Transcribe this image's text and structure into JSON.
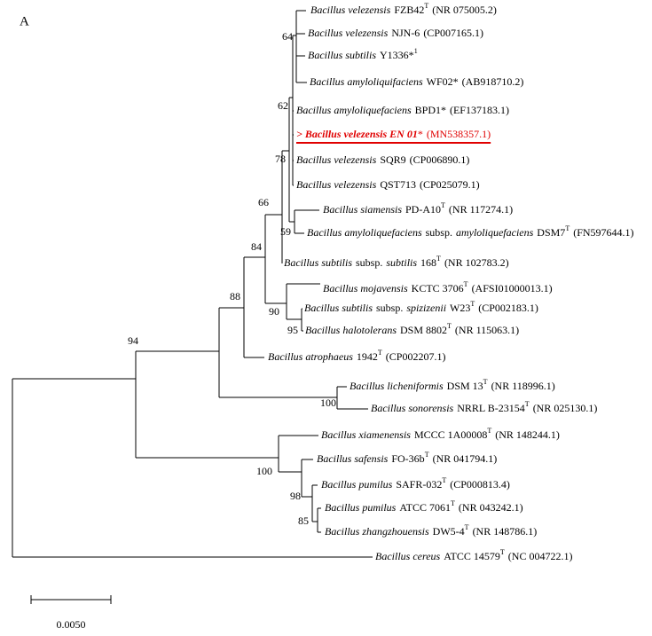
{
  "panel_label": "A",
  "leaves": [
    {
      "parts": [
        {
          "text": "Bacillus velezensis",
          "style": "italic"
        },
        {
          "text": "FZB42",
          "style": "normal"
        },
        {
          "text": "T",
          "style": "sup"
        },
        {
          "text": "(NR 075005.2)",
          "style": "normal"
        }
      ]
    },
    {
      "parts": [
        {
          "text": "Bacillus velezensis",
          "style": "italic"
        },
        {
          "text": "NJN-6",
          "style": "normal"
        },
        {
          "text": "(CP007165.1)",
          "style": "normal"
        }
      ]
    },
    {
      "parts": [
        {
          "text": "Bacillus subtilis",
          "style": "italic"
        },
        {
          "text": "Y1336*",
          "style": "normal"
        },
        {
          "text": "1",
          "style": "sup"
        }
      ]
    },
    {
      "parts": [
        {
          "text": "Bacillus amyloliquifaciens",
          "style": "italic"
        },
        {
          "text": "WF02*",
          "style": "normal"
        },
        {
          "text": "(AB918710.2)",
          "style": "normal"
        }
      ]
    },
    {
      "parts": [
        {
          "text": "Bacillus amyloliquefaciens",
          "style": "italic"
        },
        {
          "text": "BPD1*",
          "style": "normal"
        },
        {
          "text": "(EF137183.1)",
          "style": "normal"
        }
      ]
    },
    {
      "highlight": true,
      "color": "#e00000",
      "parts": [
        {
          "text": "> Bacillus velezensis EN 01",
          "style": "bold-italic"
        },
        {
          "text": "*",
          "style": "normal"
        },
        {
          "text": "(MN538357.1)",
          "style": "normal"
        }
      ]
    },
    {
      "parts": [
        {
          "text": "Bacillus velezensis",
          "style": "italic"
        },
        {
          "text": "SQR9",
          "style": "normal"
        },
        {
          "text": "(CP006890.1)",
          "style": "normal"
        }
      ]
    },
    {
      "parts": [
        {
          "text": "Bacillus velezensis",
          "style": "italic"
        },
        {
          "text": "QST713",
          "style": "normal"
        },
        {
          "text": "(CP025079.1)",
          "style": "normal"
        }
      ]
    },
    {
      "parts": [
        {
          "text": "Bacillus siamensis",
          "style": "italic"
        },
        {
          "text": "PD-A10",
          "style": "normal"
        },
        {
          "text": "T",
          "style": "sup"
        },
        {
          "text": "(NR 117274.1)",
          "style": "normal"
        }
      ]
    },
    {
      "parts": [
        {
          "text": "Bacillus amyloliquefaciens",
          "style": "italic"
        },
        {
          "text": "subsp.",
          "style": "normal"
        },
        {
          "text": "amyloliquefaciens",
          "style": "italic"
        },
        {
          "text": "DSM7",
          "style": "normal"
        },
        {
          "text": "T",
          "style": "sup"
        },
        {
          "text": "(FN597644.1)",
          "style": "normal"
        }
      ]
    },
    {
      "parts": [
        {
          "text": "Bacillus subtilis",
          "style": "italic"
        },
        {
          "text": "subsp.",
          "style": "normal"
        },
        {
          "text": "subtilis",
          "style": "italic"
        },
        {
          "text": "168",
          "style": "normal"
        },
        {
          "text": "T",
          "style": "sup"
        },
        {
          "text": "(NR 102783.2)",
          "style": "normal"
        }
      ]
    },
    {
      "parts": [
        {
          "text": "Bacillus mojavensis",
          "style": "italic"
        },
        {
          "text": "KCTC 3706",
          "style": "normal"
        },
        {
          "text": "T",
          "style": "sup"
        },
        {
          "text": "(AFSI01000013.1)",
          "style": "normal"
        }
      ]
    },
    {
      "parts": [
        {
          "text": "Bacillus subtilis",
          "style": "italic"
        },
        {
          "text": "subsp.",
          "style": "normal"
        },
        {
          "text": "spizizenii",
          "style": "italic"
        },
        {
          "text": "W23",
          "style": "normal"
        },
        {
          "text": "T",
          "style": "sup"
        },
        {
          "text": "(CP002183.1)",
          "style": "normal"
        }
      ]
    },
    {
      "parts": [
        {
          "text": "Bacillus halotolerans",
          "style": "italic"
        },
        {
          "text": "DSM 8802",
          "style": "normal"
        },
        {
          "text": "T",
          "style": "sup"
        },
        {
          "text": "(NR 115063.1)",
          "style": "normal"
        }
      ]
    },
    {
      "parts": [
        {
          "text": "Bacillus atrophaeus",
          "style": "italic"
        },
        {
          "text": "1942",
          "style": "normal"
        },
        {
          "text": "T",
          "style": "sup"
        },
        {
          "text": "(CP002207.1)",
          "style": "normal"
        }
      ]
    },
    {
      "parts": [
        {
          "text": "Bacillus licheniformis",
          "style": "italic"
        },
        {
          "text": "DSM 13",
          "style": "normal"
        },
        {
          "text": "T",
          "style": "sup"
        },
        {
          "text": "(NR 118996.1)",
          "style": "normal"
        }
      ]
    },
    {
      "parts": [
        {
          "text": "Bacillus sonorensis",
          "style": "italic"
        },
        {
          "text": "NRRL B-23154",
          "style": "normal"
        },
        {
          "text": "T",
          "style": "sup"
        },
        {
          "text": "(NR 025130.1)",
          "style": "normal"
        }
      ]
    },
    {
      "parts": [
        {
          "text": "Bacillus xiamenensis",
          "style": "italic"
        },
        {
          "text": "MCCC 1A00008",
          "style": "normal"
        },
        {
          "text": "T",
          "style": "sup"
        },
        {
          "text": "(NR 148244.1)",
          "style": "normal"
        }
      ]
    },
    {
      "parts": [
        {
          "text": "Bacillus safensis",
          "style": "italic"
        },
        {
          "text": "FO-36b",
          "style": "normal"
        },
        {
          "text": "T",
          "style": "sup"
        },
        {
          "text": "(NR 041794.1)",
          "style": "normal"
        }
      ]
    },
    {
      "parts": [
        {
          "text": "Bacillus pumilus",
          "style": "italic"
        },
        {
          "text": "SAFR-032",
          "style": "normal"
        },
        {
          "text": "T",
          "style": "sup"
        },
        {
          "text": "(CP000813.4)",
          "style": "normal"
        }
      ]
    },
    {
      "parts": [
        {
          "text": "Bacillus pumilus",
          "style": "italic"
        },
        {
          "text": "ATCC 7061",
          "style": "normal"
        },
        {
          "text": "T",
          "style": "sup"
        },
        {
          "text": "(NR 043242.1)",
          "style": "normal"
        }
      ]
    },
    {
      "parts": [
        {
          "text": "Bacillus zhangzhouensis",
          "style": "italic"
        },
        {
          "text": "DW5-4",
          "style": "normal"
        },
        {
          "text": "T",
          "style": "sup"
        },
        {
          "text": "(NR 148786.1)",
          "style": "normal"
        }
      ]
    },
    {
      "parts": [
        {
          "text": "Bacillus cereus",
          "style": "italic"
        },
        {
          "text": "ATCC 14579",
          "style": "normal"
        },
        {
          "text": "T",
          "style": "sup"
        },
        {
          "text": "(NC 004722.1)",
          "style": "normal"
        }
      ]
    }
  ],
  "bootstrap": [
    64,
    62,
    78,
    66,
    59,
    84,
    90,
    95,
    88,
    94,
    100,
    100,
    98,
    85
  ],
  "scale_bar_label": "0.0050"
}
